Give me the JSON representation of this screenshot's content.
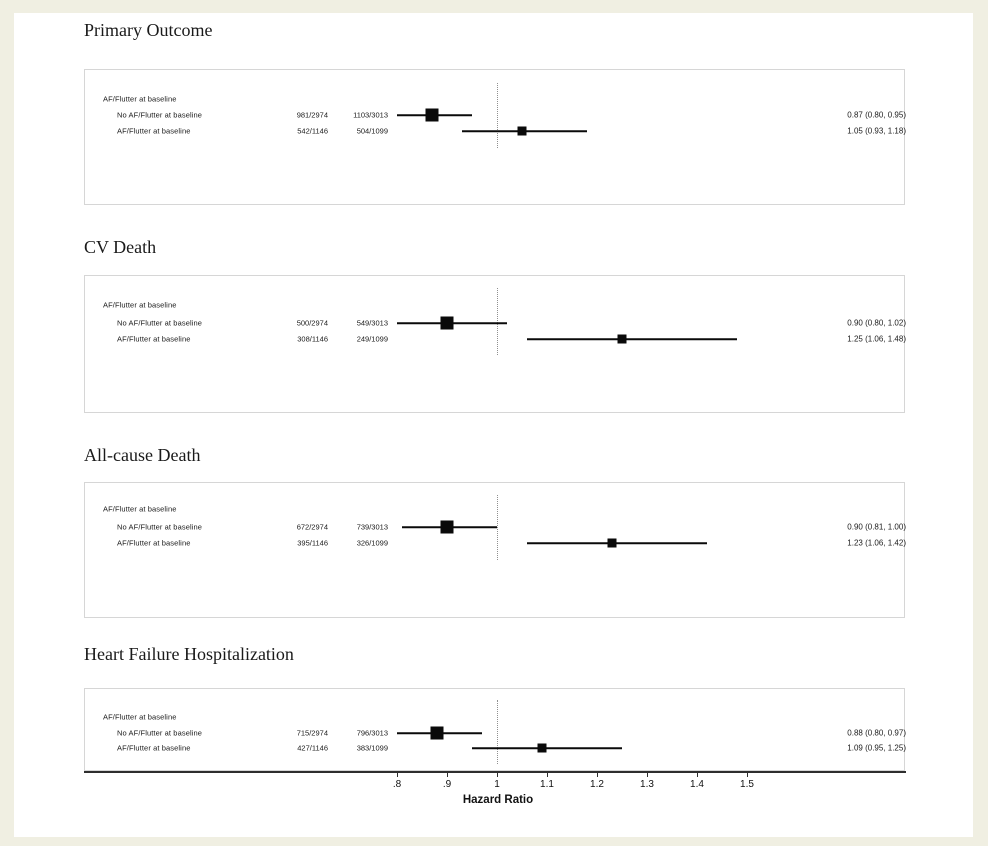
{
  "chart_data": {
    "type": "forest",
    "xlabel": "Hazard Ratio",
    "x_ticks": [
      {
        "value": 0.8,
        "label": ".8"
      },
      {
        "value": 0.9,
        "label": ".9"
      },
      {
        "value": 1.0,
        "label": "1"
      },
      {
        "value": 1.1,
        "label": "1.1"
      },
      {
        "value": 1.2,
        "label": "1.2"
      },
      {
        "value": 1.3,
        "label": "1.3"
      },
      {
        "value": 1.4,
        "label": "1.4"
      },
      {
        "value": 1.5,
        "label": "1.5"
      }
    ],
    "x_range": [
      0.8,
      1.5
    ],
    "reference_line": 1.0,
    "grid": false,
    "panels": [
      {
        "title": "Primary Outcome",
        "group_label": "AF/Flutter at baseline",
        "rows": [
          {
            "label": "No AF/Flutter at baseline",
            "events_arm1": "981/2974",
            "events_arm2": "1103/3013",
            "hr": 0.87,
            "ci_low": 0.8,
            "ci_high": 0.95,
            "hr_text": "0.87 (0.80, 0.95)",
            "marker": "large"
          },
          {
            "label": "AF/Flutter at baseline",
            "events_arm1": "542/1146",
            "events_arm2": "504/1099",
            "hr": 1.05,
            "ci_low": 0.93,
            "ci_high": 1.18,
            "hr_text": "1.05 (0.93, 1.18)",
            "marker": "small"
          }
        ]
      },
      {
        "title": "CV Death",
        "group_label": "AF/Flutter at baseline",
        "rows": [
          {
            "label": "No AF/Flutter at baseline",
            "events_arm1": "500/2974",
            "events_arm2": "549/3013",
            "hr": 0.9,
            "ci_low": 0.8,
            "ci_high": 1.02,
            "hr_text": "0.90 (0.80, 1.02)",
            "marker": "large"
          },
          {
            "label": "AF/Flutter at baseline",
            "events_arm1": "308/1146",
            "events_arm2": "249/1099",
            "hr": 1.25,
            "ci_low": 1.06,
            "ci_high": 1.48,
            "hr_text": "1.25 (1.06, 1.48)",
            "marker": "small"
          }
        ]
      },
      {
        "title": "All-cause Death",
        "group_label": "AF/Flutter at baseline",
        "rows": [
          {
            "label": "No AF/Flutter at baseline",
            "events_arm1": "672/2974",
            "events_arm2": "739/3013",
            "hr": 0.9,
            "ci_low": 0.81,
            "ci_high": 1.0,
            "hr_text": "0.90 (0.81, 1.00)",
            "marker": "large"
          },
          {
            "label": "AF/Flutter at baseline",
            "events_arm1": "395/1146",
            "events_arm2": "326/1099",
            "hr": 1.23,
            "ci_low": 1.06,
            "ci_high": 1.42,
            "hr_text": "1.23 (1.06, 1.42)",
            "marker": "small"
          }
        ]
      },
      {
        "title": "Heart Failure Hospitalization",
        "group_label": "AF/Flutter at baseline",
        "rows": [
          {
            "label": "No AF/Flutter at baseline",
            "events_arm1": "715/2974",
            "events_arm2": "796/3013",
            "hr": 0.88,
            "ci_low": 0.8,
            "ci_high": 0.97,
            "hr_text": "0.88 (0.80, 0.97)",
            "marker": "large"
          },
          {
            "label": "AF/Flutter at baseline",
            "events_arm1": "427/1146",
            "events_arm2": "383/1099",
            "hr": 1.09,
            "ci_low": 0.95,
            "ci_high": 1.25,
            "hr_text": "1.09 (0.95, 1.25)",
            "marker": "small"
          }
        ]
      }
    ],
    "colors": {
      "page_background": "#f0efe2",
      "plot_background": "#ffffff",
      "panel_border": "#d6d6d6",
      "ink": "#1a1a1a",
      "reference_line": "#8f8f8f"
    }
  }
}
